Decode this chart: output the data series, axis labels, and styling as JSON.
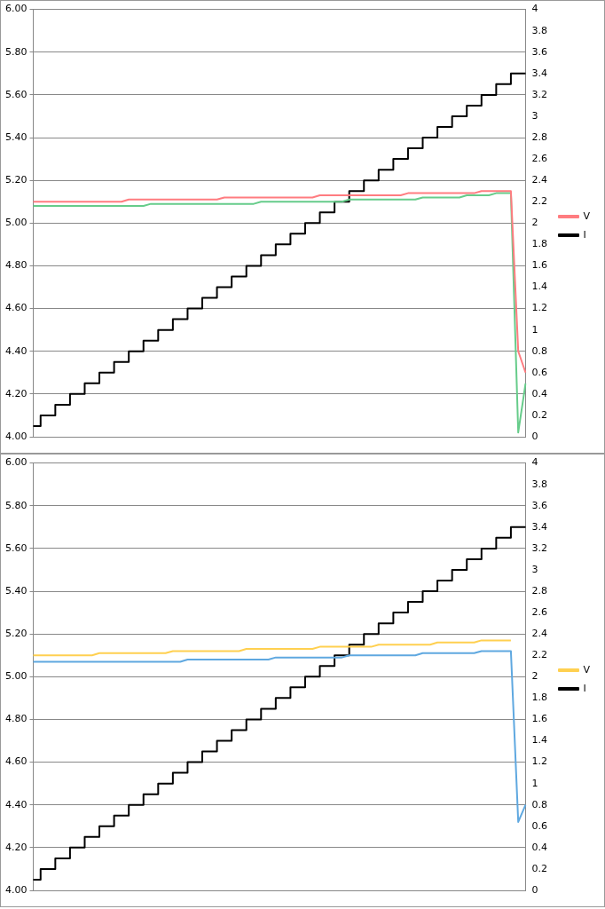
{
  "chart_data": [
    {
      "type": "line",
      "categories": [
        null,
        null,
        null,
        null,
        null,
        null,
        null,
        null,
        null,
        null,
        null,
        null,
        null,
        null,
        null,
        null,
        null,
        null,
        null,
        null,
        null,
        null,
        null,
        null,
        null,
        null,
        null,
        null,
        null,
        null,
        null,
        null,
        null,
        null,
        null,
        null,
        null,
        null,
        null,
        null,
        null,
        null,
        null,
        null,
        null,
        null,
        null,
        null,
        null,
        null,
        null,
        null,
        null,
        null,
        null,
        null,
        null,
        null,
        null,
        null,
        null,
        null,
        null,
        null,
        null,
        null,
        null,
        null
      ],
      "series": [
        {
          "name": "V",
          "color": "#ff7c80",
          "values": [
            5.1,
            5.1,
            5.1,
            5.1,
            5.1,
            5.1,
            5.1,
            5.1,
            5.1,
            5.1,
            5.1,
            5.1,
            5.1,
            5.11,
            5.11,
            5.11,
            5.11,
            5.11,
            5.11,
            5.11,
            5.11,
            5.11,
            5.11,
            5.11,
            5.11,
            5.11,
            5.12,
            5.12,
            5.12,
            5.12,
            5.12,
            5.12,
            5.12,
            5.12,
            5.12,
            5.12,
            5.12,
            5.12,
            5.12,
            5.13,
            5.13,
            5.13,
            5.13,
            5.13,
            5.13,
            5.13,
            5.13,
            5.13,
            5.13,
            5.13,
            5.13,
            5.14,
            5.14,
            5.14,
            5.14,
            5.14,
            5.14,
            5.14,
            5.14,
            5.14,
            5.14,
            5.15,
            5.15,
            5.15,
            5.15,
            5.15,
            4.4,
            4.3
          ]
        },
        {
          "color": "#66cc8a",
          "values": [
            5.08,
            5.08,
            5.08,
            5.08,
            5.08,
            5.08,
            5.08,
            5.08,
            5.08,
            5.08,
            5.08,
            5.08,
            5.08,
            5.08,
            5.08,
            5.08,
            5.09,
            5.09,
            5.09,
            5.09,
            5.09,
            5.09,
            5.09,
            5.09,
            5.09,
            5.09,
            5.09,
            5.09,
            5.09,
            5.09,
            5.09,
            5.1,
            5.1,
            5.1,
            5.1,
            5.1,
            5.1,
            5.1,
            5.1,
            5.1,
            5.1,
            5.1,
            5.1,
            5.11,
            5.11,
            5.11,
            5.11,
            5.11,
            5.11,
            5.11,
            5.11,
            5.11,
            5.11,
            5.12,
            5.12,
            5.12,
            5.12,
            5.12,
            5.12,
            5.13,
            5.13,
            5.13,
            5.13,
            5.14,
            5.14,
            5.14,
            4.02,
            4.25
          ]
        },
        {
          "name": "I",
          "type": "step",
          "axis": "y2",
          "color": "#000000",
          "values": [
            0.1,
            0.1,
            0.2,
            0.2,
            0.3,
            0.3,
            0.4,
            0.4,
            0.5,
            0.5,
            0.6,
            0.6,
            0.7,
            0.7,
            0.8,
            0.8,
            0.9,
            0.9,
            1,
            1,
            1.1,
            1.1,
            1.2,
            1.2,
            1.3,
            1.3,
            1.4,
            1.4,
            1.5,
            1.5,
            1.6,
            1.6,
            1.7,
            1.7,
            1.8,
            1.8,
            1.9,
            1.9,
            2,
            2,
            2.1,
            2.1,
            2.2,
            2.2,
            2.3,
            2.3,
            2.4,
            2.4,
            2.5,
            2.5,
            2.6,
            2.6,
            2.7,
            2.7,
            2.8,
            2.8,
            2.9,
            2.9,
            3,
            3,
            3.1,
            3.1,
            3.2,
            3.2,
            3.3,
            3.3,
            3.4,
            3.4
          ]
        }
      ],
      "ylim": [
        4,
        6
      ],
      "yticks": [
        {
          "value": 4,
          "label": "4.00"
        },
        {
          "value": 4.2,
          "label": "4.20"
        },
        {
          "value": 4.4,
          "label": "4.40"
        },
        {
          "value": 4.6,
          "label": "4.60"
        },
        {
          "value": 4.8,
          "label": "4.80"
        },
        {
          "value": 5,
          "label": "5.00"
        },
        {
          "value": 5.2,
          "label": "5.20"
        },
        {
          "value": 5.4,
          "label": "5.40"
        },
        {
          "value": 5.6,
          "label": "5.60"
        },
        {
          "value": 5.8,
          "label": "5.80"
        },
        {
          "value": 6,
          "label": "6.00"
        }
      ],
      "y2lim": [
        0,
        4
      ],
      "y2ticks": [
        0,
        0.2,
        0.4,
        0.6,
        0.8,
        1,
        1.2,
        1.4,
        1.6,
        1.8,
        2,
        2.2,
        2.4,
        2.6,
        2.8,
        3,
        3.2,
        3.4,
        3.6,
        3.8,
        4
      ],
      "grid": "y",
      "legend": "right",
      "tick_labels": "y",
      "marker": "none"
    },
    {
      "type": "line",
      "categories": [
        null,
        null,
        null,
        null,
        null,
        null,
        null,
        null,
        null,
        null,
        null,
        null,
        null,
        null,
        null,
        null,
        null,
        null,
        null,
        null,
        null,
        null,
        null,
        null,
        null,
        null,
        null,
        null,
        null,
        null,
        null,
        null,
        null,
        null,
        null,
        null,
        null,
        null,
        null,
        null,
        null,
        null,
        null,
        null,
        null,
        null,
        null,
        null,
        null,
        null,
        null,
        null,
        null,
        null,
        null,
        null,
        null,
        null,
        null,
        null,
        null,
        null,
        null,
        null,
        null,
        null,
        null,
        null
      ],
      "series": [
        {
          "name": "V",
          "color": "#ffd050",
          "values": [
            5.1,
            5.1,
            5.1,
            5.1,
            5.1,
            5.1,
            5.1,
            5.1,
            5.1,
            5.11,
            5.11,
            5.11,
            5.11,
            5.11,
            5.11,
            5.11,
            5.11,
            5.11,
            5.11,
            5.12,
            5.12,
            5.12,
            5.12,
            5.12,
            5.12,
            5.12,
            5.12,
            5.12,
            5.12,
            5.13,
            5.13,
            5.13,
            5.13,
            5.13,
            5.13,
            5.13,
            5.13,
            5.13,
            5.13,
            5.14,
            5.14,
            5.14,
            5.14,
            5.14,
            5.14,
            5.14,
            5.14,
            5.15,
            5.15,
            5.15,
            5.15,
            5.15,
            5.15,
            5.15,
            5.15,
            5.16,
            5.16,
            5.16,
            5.16,
            5.16,
            5.16,
            5.17,
            5.17,
            5.17,
            5.17,
            5.17,
            null,
            null
          ]
        },
        {
          "color": "#5fa8e0",
          "values": [
            5.07,
            5.07,
            5.07,
            5.07,
            5.07,
            5.07,
            5.07,
            5.07,
            5.07,
            5.07,
            5.07,
            5.07,
            5.07,
            5.07,
            5.07,
            5.07,
            5.07,
            5.07,
            5.07,
            5.07,
            5.07,
            5.08,
            5.08,
            5.08,
            5.08,
            5.08,
            5.08,
            5.08,
            5.08,
            5.08,
            5.08,
            5.08,
            5.08,
            5.09,
            5.09,
            5.09,
            5.09,
            5.09,
            5.09,
            5.09,
            5.09,
            5.09,
            5.09,
            5.1,
            5.1,
            5.1,
            5.1,
            5.1,
            5.1,
            5.1,
            5.1,
            5.1,
            5.1,
            5.11,
            5.11,
            5.11,
            5.11,
            5.11,
            5.11,
            5.11,
            5.11,
            5.12,
            5.12,
            5.12,
            5.12,
            5.12,
            4.32,
            4.4
          ]
        },
        {
          "name": "I",
          "type": "step",
          "axis": "y2",
          "color": "#000000",
          "values": [
            0.1,
            0.1,
            0.2,
            0.2,
            0.3,
            0.3,
            0.4,
            0.4,
            0.5,
            0.5,
            0.6,
            0.6,
            0.7,
            0.7,
            0.8,
            0.8,
            0.9,
            0.9,
            1,
            1,
            1.1,
            1.1,
            1.2,
            1.2,
            1.3,
            1.3,
            1.4,
            1.4,
            1.5,
            1.5,
            1.6,
            1.6,
            1.7,
            1.7,
            1.8,
            1.8,
            1.9,
            1.9,
            2,
            2,
            2.1,
            2.1,
            2.2,
            2.2,
            2.3,
            2.3,
            2.4,
            2.4,
            2.5,
            2.5,
            2.6,
            2.6,
            2.7,
            2.7,
            2.8,
            2.8,
            2.9,
            2.9,
            3,
            3,
            3.1,
            3.1,
            3.2,
            3.2,
            3.3,
            3.3,
            3.4,
            3.4
          ]
        }
      ],
      "ylim": [
        4,
        6
      ],
      "yticks": [
        {
          "value": 4,
          "label": "4.00"
        },
        {
          "value": 4.2,
          "label": "4.20"
        },
        {
          "value": 4.4,
          "label": "4.40"
        },
        {
          "value": 4.6,
          "label": "4.60"
        },
        {
          "value": 4.8,
          "label": "4.80"
        },
        {
          "value": 5,
          "label": "5.00"
        },
        {
          "value": 5.2,
          "label": "5.20"
        },
        {
          "value": 5.4,
          "label": "5.40"
        },
        {
          "value": 5.6,
          "label": "5.60"
        },
        {
          "value": 5.8,
          "label": "5.80"
        },
        {
          "value": 6,
          "label": "6.00"
        }
      ],
      "y2lim": [
        0,
        4
      ],
      "y2ticks": [
        0,
        0.2,
        0.4,
        0.6,
        0.8,
        1,
        1.2,
        1.4,
        1.6,
        1.8,
        2,
        2.2,
        2.4,
        2.6,
        2.8,
        3,
        3.2,
        3.4,
        3.6,
        3.8,
        4
      ],
      "grid": "y",
      "legend": "right",
      "tick_labels": "y",
      "marker": "none"
    }
  ]
}
